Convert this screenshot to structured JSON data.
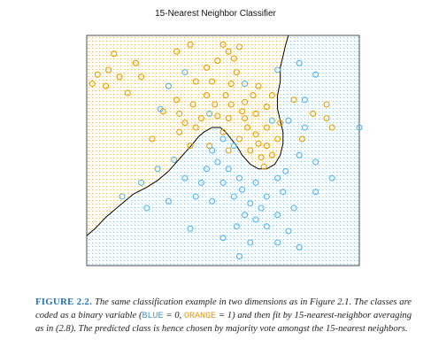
{
  "figure": {
    "label": "FIGURE 2.2.",
    "caption_a": " The same classification example in two dimensions as in Figure 2.1. The classes are coded as a binary variable (",
    "blue_code": "BLUE",
    "caption_b": " = 0, ",
    "orange_code": "ORANGE",
    "caption_c": " = 1) and then fit by 15-nearest-neighbor averaging as in (2.8). The predicted class is hence chosen by majority vote amongst the 15-nearest neighbors."
  },
  "chart_data": {
    "type": "scatter",
    "title": "15-Nearest Neighbor Classifier",
    "axes_visible": false,
    "grid": "dot lattice shaded by predicted class",
    "colors": {
      "blue": "#56B4E9",
      "orange": "#E69F00",
      "boundary": "#000000"
    },
    "xlim": [
      0,
      1
    ],
    "ylim": [
      0,
      1
    ],
    "decision_boundary": [
      [
        0.0,
        0.13
      ],
      [
        0.03,
        0.16
      ],
      [
        0.07,
        0.21
      ],
      [
        0.12,
        0.26
      ],
      [
        0.17,
        0.31
      ],
      [
        0.22,
        0.34
      ],
      [
        0.26,
        0.37
      ],
      [
        0.3,
        0.41
      ],
      [
        0.33,
        0.45
      ],
      [
        0.36,
        0.49
      ],
      [
        0.39,
        0.53
      ],
      [
        0.41,
        0.56
      ],
      [
        0.43,
        0.58
      ],
      [
        0.46,
        0.6
      ],
      [
        0.49,
        0.6
      ],
      [
        0.51,
        0.58
      ],
      [
        0.53,
        0.55
      ],
      [
        0.55,
        0.52
      ],
      [
        0.57,
        0.48
      ],
      [
        0.6,
        0.44
      ],
      [
        0.63,
        0.42
      ],
      [
        0.66,
        0.42
      ],
      [
        0.69,
        0.44
      ],
      [
        0.71,
        0.48
      ],
      [
        0.72,
        0.53
      ],
      [
        0.72,
        0.58
      ],
      [
        0.71,
        0.63
      ],
      [
        0.7,
        0.68
      ],
      [
        0.7,
        0.74
      ],
      [
        0.71,
        0.8
      ],
      [
        0.71,
        0.86
      ],
      [
        0.72,
        0.91
      ],
      [
        0.73,
        0.96
      ],
      [
        0.74,
        1.0
      ]
    ],
    "series": [
      {
        "class": "orange",
        "points": [
          [
            0.5,
            0.96
          ],
          [
            0.52,
            0.93
          ],
          [
            0.38,
            0.96
          ],
          [
            0.33,
            0.93
          ],
          [
            0.1,
            0.92
          ],
          [
            0.56,
            0.95
          ],
          [
            0.54,
            0.9
          ],
          [
            0.48,
            0.89
          ],
          [
            0.44,
            0.86
          ],
          [
            0.55,
            0.84
          ],
          [
            0.18,
            0.88
          ],
          [
            0.08,
            0.85
          ],
          [
            0.04,
            0.83
          ],
          [
            0.12,
            0.82
          ],
          [
            0.2,
            0.82
          ],
          [
            0.02,
            0.79
          ],
          [
            0.07,
            0.78
          ],
          [
            0.15,
            0.75
          ],
          [
            0.4,
            0.8
          ],
          [
            0.46,
            0.8
          ],
          [
            0.53,
            0.79
          ],
          [
            0.51,
            0.74
          ],
          [
            0.44,
            0.74
          ],
          [
            0.33,
            0.72
          ],
          [
            0.39,
            0.7
          ],
          [
            0.47,
            0.7
          ],
          [
            0.53,
            0.7
          ],
          [
            0.58,
            0.71
          ],
          [
            0.61,
            0.74
          ],
          [
            0.63,
            0.78
          ],
          [
            0.28,
            0.67
          ],
          [
            0.34,
            0.66
          ],
          [
            0.42,
            0.64
          ],
          [
            0.48,
            0.65
          ],
          [
            0.52,
            0.64
          ],
          [
            0.58,
            0.64
          ],
          [
            0.62,
            0.66
          ],
          [
            0.66,
            0.69
          ],
          [
            0.68,
            0.74
          ],
          [
            0.66,
            0.6
          ],
          [
            0.62,
            0.57
          ],
          [
            0.59,
            0.6
          ],
          [
            0.56,
            0.55
          ],
          [
            0.6,
            0.5
          ],
          [
            0.63,
            0.53
          ],
          [
            0.66,
            0.52
          ],
          [
            0.64,
            0.47
          ],
          [
            0.68,
            0.48
          ],
          [
            0.7,
            0.55
          ],
          [
            0.52,
            0.5
          ],
          [
            0.45,
            0.52
          ],
          [
            0.38,
            0.52
          ],
          [
            0.24,
            0.55
          ],
          [
            0.34,
            0.58
          ],
          [
            0.83,
            0.66
          ],
          [
            0.88,
            0.64
          ],
          [
            0.9,
            0.6
          ],
          [
            0.88,
            0.7
          ],
          [
            0.79,
            0.55
          ],
          [
            0.76,
            0.72
          ],
          [
            0.71,
            0.62
          ],
          [
            0.65,
            0.43
          ],
          [
            0.4,
            0.6
          ],
          [
            0.36,
            0.62
          ],
          [
            0.5,
            0.58
          ],
          [
            0.57,
            0.67
          ]
        ]
      },
      {
        "class": "blue",
        "points": [
          [
            0.78,
            0.88
          ],
          [
            0.84,
            0.83
          ],
          [
            0.7,
            0.85
          ],
          [
            0.3,
            0.78
          ],
          [
            0.36,
            0.84
          ],
          [
            0.27,
            0.68
          ],
          [
            0.45,
            0.66
          ],
          [
            0.58,
            0.79
          ],
          [
            0.74,
            0.63
          ],
          [
            0.68,
            0.63
          ],
          [
            0.8,
            0.6
          ],
          [
            0.78,
            0.48
          ],
          [
            0.84,
            0.45
          ],
          [
            0.73,
            0.41
          ],
          [
            0.7,
            0.38
          ],
          [
            0.62,
            0.36
          ],
          [
            0.56,
            0.38
          ],
          [
            0.52,
            0.42
          ],
          [
            0.48,
            0.45
          ],
          [
            0.44,
            0.42
          ],
          [
            0.5,
            0.36
          ],
          [
            0.42,
            0.36
          ],
          [
            0.36,
            0.38
          ],
          [
            0.32,
            0.46
          ],
          [
            0.26,
            0.42
          ],
          [
            0.2,
            0.36
          ],
          [
            0.13,
            0.3
          ],
          [
            0.22,
            0.25
          ],
          [
            0.3,
            0.28
          ],
          [
            0.4,
            0.3
          ],
          [
            0.46,
            0.28
          ],
          [
            0.54,
            0.3
          ],
          [
            0.6,
            0.27
          ],
          [
            0.66,
            0.3
          ],
          [
            0.72,
            0.32
          ],
          [
            0.58,
            0.22
          ],
          [
            0.62,
            0.2
          ],
          [
            0.66,
            0.17
          ],
          [
            0.7,
            0.22
          ],
          [
            0.76,
            0.25
          ],
          [
            0.74,
            0.15
          ],
          [
            0.55,
            0.17
          ],
          [
            0.5,
            0.12
          ],
          [
            0.6,
            0.1
          ],
          [
            0.7,
            0.1
          ],
          [
            0.78,
            0.08
          ],
          [
            0.56,
            0.04
          ],
          [
            0.38,
            0.16
          ],
          [
            0.84,
            0.32
          ],
          [
            0.9,
            0.38
          ],
          [
            1.0,
            0.6
          ],
          [
            0.5,
            0.55
          ],
          [
            0.46,
            0.5
          ],
          [
            0.54,
            0.52
          ],
          [
            0.8,
            0.72
          ],
          [
            0.64,
            0.25
          ],
          [
            0.57,
            0.33
          ]
        ]
      }
    ]
  }
}
